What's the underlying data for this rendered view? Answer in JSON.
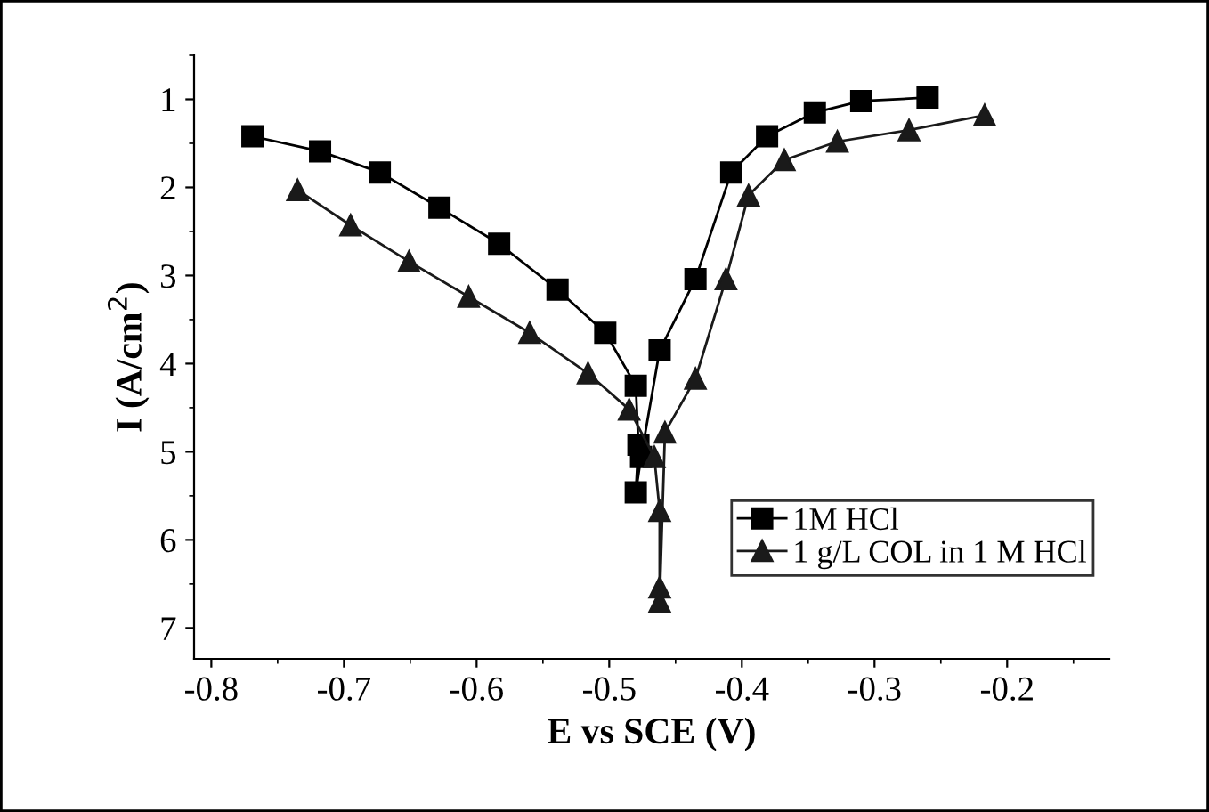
{
  "chart_data": {
    "type": "line",
    "xlabel": "E vs SCE (V)",
    "ylabel": "I (A/cm$^{2}$)",
    "xlim": [
      -0.813,
      -0.123
    ],
    "xticks": [
      {
        "value": -0.8,
        "label": "-0.8"
      },
      {
        "value": -0.7,
        "label": "-0.7"
      },
      {
        "value": -0.6,
        "label": "-0.6"
      },
      {
        "value": -0.5,
        "label": "-0.5"
      },
      {
        "value": -0.4,
        "label": "-0.4"
      },
      {
        "value": -0.3,
        "label": "-0.3"
      },
      {
        "value": -0.2,
        "label": "-0.2"
      }
    ],
    "ylim": [
      7.35,
      0.5
    ],
    "yticks": [
      1,
      2,
      3,
      4,
      5,
      6,
      7
    ],
    "grid": false,
    "legend": "right",
    "line_style": "solid",
    "series": [
      {
        "name": "1M HCl",
        "color": "#000000",
        "marker": "square",
        "x": [
          -0.769,
          -0.718,
          -0.673,
          -0.628,
          -0.583,
          -0.539,
          -0.503,
          -0.48,
          -0.478,
          -0.48,
          -0.476,
          -0.462,
          -0.435,
          -0.408,
          -0.381,
          -0.345,
          -0.31,
          -0.26
        ],
        "values": [
          1.42,
          1.59,
          1.83,
          2.23,
          2.64,
          3.16,
          3.65,
          4.25,
          4.92,
          5.46,
          5.06,
          3.85,
          3.04,
          1.83,
          1.42,
          1.15,
          1.02,
          0.98
        ]
      },
      {
        "name": "1 g/L COL in 1 M HCl",
        "color": "#1a1a1a",
        "marker": "triangle",
        "x": [
          -0.735,
          -0.695,
          -0.651,
          -0.606,
          -0.56,
          -0.516,
          -0.485,
          -0.466,
          -0.462,
          -0.462,
          -0.462,
          -0.458,
          -0.435,
          -0.412,
          -0.395,
          -0.368,
          -0.328,
          -0.274,
          -0.217
        ],
        "values": [
          2.03,
          2.43,
          2.84,
          3.24,
          3.65,
          4.11,
          4.52,
          5.06,
          5.67,
          6.54,
          6.7,
          4.78,
          4.17,
          3.04,
          2.09,
          1.69,
          1.48,
          1.35,
          1.18
        ]
      }
    ]
  }
}
